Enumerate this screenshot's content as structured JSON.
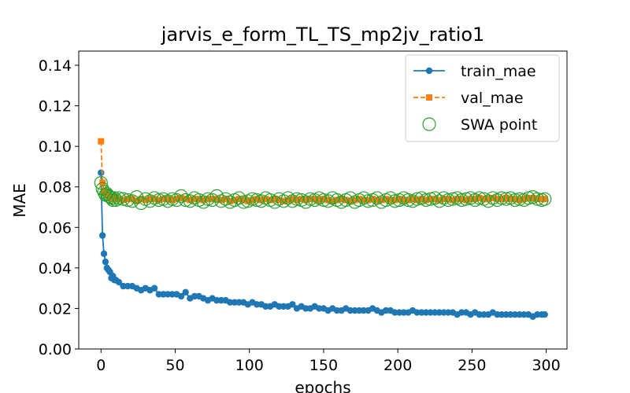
{
  "chart_data": {
    "type": "line",
    "title": "jarvis_e_form_TL_TS_mp2jv_ratio1",
    "xlabel": "epochs",
    "ylabel": "MAE",
    "x": [
      0,
      1,
      2,
      3,
      4,
      5,
      6,
      7,
      8,
      9,
      10,
      12,
      15,
      18,
      21,
      24,
      27,
      30,
      33,
      36,
      39,
      42,
      45,
      48,
      51,
      54,
      57,
      60,
      63,
      66,
      69,
      72,
      75,
      78,
      81,
      84,
      87,
      90,
      93,
      96,
      99,
      102,
      105,
      108,
      111,
      114,
      117,
      120,
      123,
      126,
      129,
      132,
      135,
      138,
      141,
      144,
      147,
      150,
      153,
      156,
      159,
      162,
      165,
      168,
      171,
      174,
      177,
      180,
      183,
      186,
      189,
      192,
      195,
      198,
      201,
      204,
      207,
      210,
      213,
      216,
      219,
      222,
      225,
      228,
      231,
      234,
      237,
      240,
      243,
      246,
      249,
      252,
      255,
      258,
      261,
      264,
      267,
      270,
      273,
      276,
      279,
      282,
      285,
      288,
      291,
      294,
      297,
      299
    ],
    "series": [
      {
        "name": "train_mae",
        "color": "#1f77b4",
        "marker": "circle",
        "linestyle": "solid",
        "values": [
          0.087,
          0.056,
          0.047,
          0.043,
          0.04,
          0.039,
          0.038,
          0.035,
          0.036,
          0.034,
          0.034,
          0.033,
          0.031,
          0.031,
          0.031,
          0.03,
          0.029,
          0.03,
          0.029,
          0.03,
          0.027,
          0.027,
          0.027,
          0.027,
          0.027,
          0.026,
          0.028,
          0.025,
          0.026,
          0.026,
          0.025,
          0.024,
          0.025,
          0.024,
          0.024,
          0.024,
          0.023,
          0.023,
          0.023,
          0.023,
          0.022,
          0.023,
          0.022,
          0.022,
          0.021,
          0.021,
          0.022,
          0.021,
          0.021,
          0.021,
          0.022,
          0.02,
          0.021,
          0.02,
          0.02,
          0.021,
          0.02,
          0.02,
          0.019,
          0.02,
          0.019,
          0.019,
          0.02,
          0.019,
          0.019,
          0.019,
          0.019,
          0.019,
          0.02,
          0.019,
          0.018,
          0.019,
          0.019,
          0.018,
          0.018,
          0.018,
          0.018,
          0.019,
          0.018,
          0.018,
          0.018,
          0.018,
          0.018,
          0.018,
          0.018,
          0.018,
          0.018,
          0.017,
          0.018,
          0.018,
          0.017,
          0.018,
          0.017,
          0.017,
          0.017,
          0.018,
          0.017,
          0.017,
          0.017,
          0.017,
          0.017,
          0.017,
          0.017,
          0.017,
          0.016,
          0.017,
          0.017,
          0.017
        ]
      },
      {
        "name": "val_mae",
        "color": "#ff7f0e",
        "marker": "square",
        "linestyle": "dashed",
        "values": [
          0.1025,
          0.082,
          0.078,
          0.077,
          0.076,
          0.076,
          0.075,
          0.075,
          0.0745,
          0.074,
          0.0745,
          0.074,
          0.0735,
          0.074,
          0.074,
          0.073,
          0.074,
          0.0735,
          0.074,
          0.074,
          0.0735,
          0.074,
          0.074,
          0.0735,
          0.074,
          0.0745,
          0.074,
          0.0735,
          0.074,
          0.074,
          0.0735,
          0.074,
          0.074,
          0.074,
          0.0735,
          0.074,
          0.073,
          0.0735,
          0.074,
          0.0735,
          0.073,
          0.0735,
          0.074,
          0.0735,
          0.074,
          0.0735,
          0.074,
          0.0735,
          0.073,
          0.0735,
          0.074,
          0.0735,
          0.074,
          0.0735,
          0.074,
          0.074,
          0.0735,
          0.074,
          0.0735,
          0.073,
          0.0735,
          0.074,
          0.0735,
          0.073,
          0.0735,
          0.074,
          0.0735,
          0.0735,
          0.074,
          0.0735,
          0.0735,
          0.074,
          0.0735,
          0.0735,
          0.074,
          0.0735,
          0.0735,
          0.074,
          0.0735,
          0.074,
          0.0735,
          0.074,
          0.074,
          0.0735,
          0.074,
          0.074,
          0.0735,
          0.074,
          0.074,
          0.0735,
          0.074,
          0.074,
          0.0745,
          0.074,
          0.074,
          0.0745,
          0.074,
          0.074,
          0.0745,
          0.074,
          0.074,
          0.0735,
          0.074,
          0.0745,
          0.0745,
          0.074,
          0.074,
          0.074
        ]
      },
      {
        "name": "SWA point",
        "color": "#2ca02c",
        "marker": "hollow-circle",
        "linestyle": "none",
        "values": [
          0.082,
          0.079,
          0.0775,
          0.076,
          0.0765,
          0.0755,
          0.075,
          0.0745,
          0.0735,
          0.0745,
          0.0735,
          0.0745,
          0.074,
          0.0735,
          0.073,
          0.075,
          0.072,
          0.074,
          0.073,
          0.0745,
          0.0735,
          0.074,
          0.073,
          0.074,
          0.0735,
          0.0755,
          0.0735,
          0.073,
          0.0745,
          0.0735,
          0.0725,
          0.074,
          0.0735,
          0.0755,
          0.073,
          0.074,
          0.0725,
          0.0735,
          0.0745,
          0.0725,
          0.073,
          0.074,
          0.0735,
          0.073,
          0.0745,
          0.0735,
          0.0725,
          0.074,
          0.073,
          0.0745,
          0.073,
          0.074,
          0.0735,
          0.0725,
          0.074,
          0.0735,
          0.0745,
          0.0735,
          0.073,
          0.0745,
          0.0735,
          0.0725,
          0.0735,
          0.0745,
          0.0725,
          0.0735,
          0.0745,
          0.073,
          0.0735,
          0.0745,
          0.0725,
          0.0735,
          0.0745,
          0.073,
          0.0735,
          0.0745,
          0.0735,
          0.073,
          0.074,
          0.0745,
          0.0735,
          0.074,
          0.0745,
          0.073,
          0.0745,
          0.0735,
          0.074,
          0.0745,
          0.0735,
          0.074,
          0.0745,
          0.0735,
          0.0745,
          0.074,
          0.073,
          0.0745,
          0.0735,
          0.0745,
          0.074,
          0.0745,
          0.0735,
          0.074,
          0.0735,
          0.0745,
          0.075,
          0.074,
          0.0735,
          0.074
        ]
      }
    ],
    "xlim": [
      -15,
      314
    ],
    "ylim": [
      0,
      0.147
    ],
    "xticks": [
      0,
      50,
      100,
      150,
      200,
      250,
      300
    ],
    "yticks": [
      {
        "value": 0,
        "label": "0.00"
      },
      {
        "value": 0.02,
        "label": "0.02"
      },
      {
        "value": 0.04,
        "label": "0.04"
      },
      {
        "value": 0.06,
        "label": "0.06"
      },
      {
        "value": 0.08,
        "label": "0.08"
      },
      {
        "value": 0.1,
        "label": "0.10"
      },
      {
        "value": 0.12,
        "label": "0.12"
      },
      {
        "value": 0.14,
        "label": "0.14"
      }
    ],
    "grid": false,
    "legend": "upper right"
  }
}
